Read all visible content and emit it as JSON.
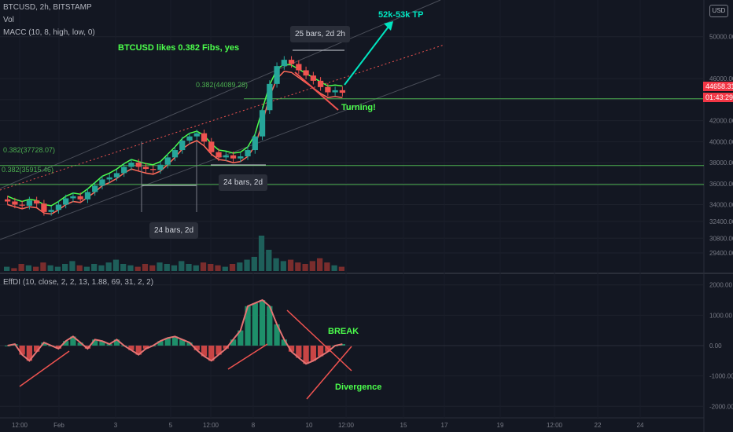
{
  "header": {
    "symbol_line": "BTCUSD, 2h, BITSTAMP",
    "vol_line": "Vol",
    "macc_line": "MACC (10, 8, high, low, 0)",
    "effdi_line": "EffDI (10, close, 2, 2, 13, 1.88, 69, 31, 2, 2)"
  },
  "currency_badge": "USD",
  "price_axis": {
    "ticks": [
      "50000.00",
      "46000.00",
      "44000.00",
      "42000.00",
      "40000.00",
      "38000.00",
      "36000.00",
      "34000.00",
      "32400.00",
      "30800.00",
      "29400.00"
    ],
    "last_price": "44658.31",
    "countdown": "01:43:29"
  },
  "osc_axis": {
    "ticks": [
      "2000.00",
      "1000.00",
      "0.00",
      "-1000.00",
      "-2000.00"
    ]
  },
  "time_axis": {
    "ticks": [
      "12:00",
      "Feb",
      "3",
      "5",
      "12:00",
      "8",
      "10",
      "12:00",
      "15",
      "17",
      "19",
      "12:00",
      "22",
      "24"
    ]
  },
  "annotations": {
    "fib_title": "BTCUSD likes 0.382 Fibs, yes",
    "fib_top": "0.382(44089.28)",
    "fib_mid": "0.382(37728.07)",
    "fib_low": "0.382(35915.46)",
    "target": "52k-53k TP",
    "turning": "Turning!",
    "bars_top": "25 bars, 2d 2h",
    "bars_mid": "24 bars, 2d",
    "bars_low": "24 bars, 2d",
    "break": "BREAK",
    "divergence": "Divergence"
  },
  "colors": {
    "background": "#131722",
    "up": "#26a69a",
    "down": "#ef5350",
    "fib_line": "#4caf50",
    "annotation_cyan": "#00e5c0",
    "annotation_green": "#4cff4c",
    "last_price_tag": "#f23645"
  },
  "chart_data": {
    "type": "candlestick",
    "price_ylim": [
      28800,
      52000
    ],
    "fib_levels": [
      44089.28,
      37728.07,
      35915.46
    ],
    "close_path": [
      34300,
      34000,
      33900,
      34400,
      34100,
      33300,
      33500,
      34000,
      34600,
      34800,
      34500,
      35200,
      35800,
      36400,
      36600,
      37000,
      37600,
      38000,
      37600,
      37400,
      37300,
      37800,
      38500,
      39200,
      40100,
      40500,
      40800,
      40000,
      39000,
      38500,
      38700,
      38400,
      38600,
      39200,
      40500,
      43000,
      45500,
      47200,
      47800,
      47400,
      46800,
      46300,
      45800,
      45200,
      44700,
      44900,
      44658.31
    ],
    "macc_upper": [
      34800,
      34500,
      34300,
      34500,
      34400,
      34000,
      33900,
      34300,
      34800,
      35100,
      35000,
      35500,
      36100,
      36700,
      37000,
      37400,
      37900,
      38300,
      38100,
      37900,
      37800,
      38100,
      38800,
      39500,
      40300,
      40800,
      41000,
      40600,
      39800,
      39200,
      39100,
      38900,
      39000,
      39500,
      40700,
      43100,
      45400,
      46900,
      47400,
      47300,
      46900,
      46500,
      46100,
      45700,
      45300,
      45400,
      45300
    ],
    "macc_lower": [
      34000,
      33800,
      33600,
      33800,
      33700,
      33200,
      33100,
      33500,
      34000,
      34300,
      34200,
      34700,
      35200,
      35800,
      36100,
      36500,
      37000,
      37400,
      37200,
      37000,
      36900,
      37200,
      37800,
      38500,
      39300,
      39800,
      40100,
      39600,
      38800,
      38300,
      38200,
      38000,
      38100,
      38600,
      39600,
      41800,
      44300,
      46000,
      46700,
      46600,
      46100,
      45600,
      45100,
      44600,
      44200,
      44300,
      44200
    ],
    "volume_relative": [
      0.3,
      0.2,
      0.5,
      0.4,
      0.3,
      0.6,
      0.4,
      0.3,
      0.5,
      0.7,
      0.4,
      0.3,
      0.5,
      0.4,
      0.6,
      0.8,
      0.5,
      0.4,
      0.3,
      0.5,
      0.4,
      0.6,
      0.5,
      0.4,
      0.7,
      0.5,
      0.4,
      0.6,
      0.5,
      0.4,
      0.3,
      0.5,
      0.6,
      0.8,
      1.0,
      2.5,
      1.5,
      0.9,
      0.7,
      0.8,
      0.6,
      0.5,
      0.7,
      0.9,
      0.6,
      0.4,
      0.3
    ],
    "oscillator_ylim": [
      -2200,
      2200
    ],
    "oscillator": [
      0,
      50,
      -300,
      -500,
      -200,
      100,
      0,
      -100,
      150,
      300,
      100,
      -100,
      200,
      150,
      50,
      200,
      0,
      -150,
      -300,
      -100,
      0,
      150,
      250,
      300,
      200,
      100,
      -150,
      -350,
      -500,
      -300,
      -100,
      200,
      500,
      1300,
      1400,
      1500,
      1300,
      700,
      200,
      -200,
      -400,
      -600,
      -500,
      -350,
      -200,
      0,
      50
    ]
  }
}
